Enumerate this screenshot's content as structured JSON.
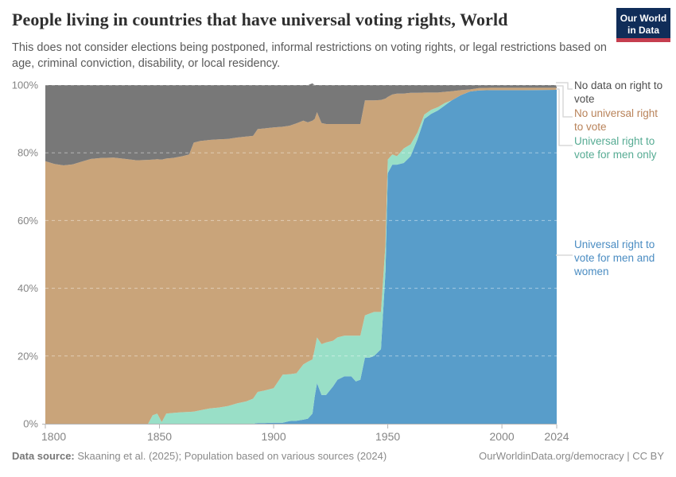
{
  "header": {
    "title": "People living in countries that have universal voting rights, World",
    "subtitle": "This does not consider elections being postponed, informal restrictions on voting rights, or legal restrictions based on age, criminal conviction, disability, or local residency.",
    "logo": {
      "line1": "Our World",
      "line2": "in Data",
      "bg_color": "#102d59",
      "bar_color": "#c53e4f"
    }
  },
  "legend": {
    "items": [
      {
        "label": "No data on right to vote",
        "color": "#4e4e4e",
        "series": "No data on right to vote"
      },
      {
        "label": "No universal right to vote",
        "color": "#b9835a",
        "series": "No universal right to vote"
      },
      {
        "label": "Universal right to vote for men only",
        "color": "#56ab93",
        "series": "Universal right to vote for men only"
      },
      {
        "label": "Universal right to vote for men and women",
        "color": "#4a8cc2",
        "series": "Universal right to vote for men and women"
      }
    ]
  },
  "chart_data": {
    "type": "area",
    "stacked": true,
    "unit": "%",
    "title": "People living in countries that have universal voting rights, World",
    "xlabel": "",
    "ylabel": "",
    "ylim": [
      0,
      100
    ],
    "grid": "dashed horizontal",
    "legend_position": "right",
    "ytick_labels": [
      "0%",
      "20%",
      "40%",
      "60%",
      "80%",
      "100%"
    ],
    "ytick_values": [
      0,
      20,
      40,
      60,
      80,
      100
    ],
    "xtick_values": [
      1800,
      1850,
      1900,
      1950,
      2000,
      2024
    ],
    "x": [
      1800,
      1804,
      1808,
      1812,
      1816,
      1820,
      1825,
      1830,
      1835,
      1840,
      1845,
      1847,
      1849,
      1851,
      1853,
      1856,
      1860,
      1863,
      1865,
      1868,
      1872,
      1876,
      1880,
      1884,
      1888,
      1891,
      1893,
      1896,
      1900,
      1904,
      1907,
      1910,
      1913,
      1915,
      1917,
      1918,
      1919,
      1921,
      1923,
      1926,
      1928,
      1931,
      1934,
      1936,
      1938,
      1940,
      1942,
      1944,
      1947,
      1949,
      1950,
      1952,
      1954,
      1957,
      1960,
      1963,
      1966,
      1969,
      1972,
      1975,
      1978,
      1982,
      1986,
      1990,
      1995,
      2000,
      2010,
      2024
    ],
    "series": [
      {
        "name": "Universal right to vote for men and women",
        "color": "#589dca",
        "label_color": "#4a8cc2",
        "values": [
          0,
          0,
          0,
          0,
          0,
          0,
          0,
          0,
          0,
          0,
          0,
          0,
          0,
          0,
          0,
          0,
          0,
          0,
          0,
          0,
          0,
          0,
          0,
          0,
          0,
          0,
          0.2,
          0.2,
          0.3,
          0.3,
          0.8,
          0.9,
          1.2,
          1.5,
          3,
          8,
          12,
          8.5,
          8.5,
          11,
          13,
          14,
          14,
          12.5,
          13,
          19.5,
          19.5,
          20,
          22,
          45,
          74,
          76.5,
          76.5,
          77,
          79,
          84,
          90,
          91.5,
          92.5,
          94,
          95.5,
          97,
          98.1,
          98.4,
          98.5,
          98.5,
          98.5,
          98.6
        ]
      },
      {
        "name": "Universal right to vote for men only",
        "color": "#99dfc7",
        "label_color": "#56ab93",
        "values": [
          0,
          0,
          0,
          0,
          0,
          0,
          0,
          0,
          0,
          0,
          0,
          2.5,
          3,
          0.5,
          3,
          3.2,
          3.4,
          3.5,
          3.6,
          4,
          4.5,
          4.8,
          5.2,
          6,
          6.6,
          7.4,
          9.2,
          9.6,
          10.2,
          14.2,
          13.8,
          14,
          16.3,
          16.8,
          16,
          14,
          13.5,
          15,
          15.5,
          13.5,
          12.5,
          12,
          12,
          13.5,
          13,
          12.5,
          13,
          13,
          11,
          8,
          4,
          3,
          2.5,
          4.3,
          3.5,
          2,
          1.3,
          1.2,
          1,
          0.7,
          0,
          0,
          0,
          0,
          0,
          0,
          0,
          0
        ]
      },
      {
        "name": "No universal right to vote",
        "color": "#c9a47a",
        "label_color": "#b9835a",
        "values": [
          77.5,
          76.7,
          76.3,
          76.6,
          77.4,
          78.2,
          78.5,
          78.6,
          78.2,
          77.8,
          77.9,
          75.5,
          75.1,
          77.5,
          75.3,
          75.3,
          75.6,
          76,
          79.4,
          79.5,
          79.3,
          79.2,
          78.9,
          78.5,
          78.2,
          77.6,
          77.6,
          77.4,
          77,
          73.2,
          73.4,
          73.8,
          72,
          70.7,
          70.5,
          68,
          66.5,
          65.3,
          64.5,
          64,
          63,
          62.5,
          62.5,
          62.5,
          62.5,
          63.5,
          63,
          62.5,
          62.6,
          43,
          18.5,
          17.7,
          18.5,
          16.2,
          15.2,
          11.7,
          6.5,
          5.1,
          4.3,
          3.3,
          2.7,
          1.5,
          0.6,
          0.7,
          0.7,
          0.7,
          0.7,
          0.6
        ]
      },
      {
        "name": "No data on right to vote",
        "color": "#787878",
        "label_color": "#4e4e4e",
        "values": [
          22.5,
          23.3,
          23.7,
          23.4,
          22.6,
          21.8,
          21.5,
          21.4,
          21.8,
          22.2,
          22.1,
          22,
          21.9,
          22,
          21.7,
          21.5,
          21,
          20.5,
          17,
          16.5,
          16.2,
          16,
          15.9,
          15.5,
          15.2,
          15,
          13,
          12.8,
          12.5,
          12.3,
          12,
          11.3,
          10.5,
          11,
          11,
          10,
          8,
          11.2,
          11.5,
          11.5,
          11.5,
          11.5,
          11.5,
          11.5,
          11.5,
          4.5,
          4.5,
          4.5,
          4.4,
          4,
          3.5,
          2.8,
          2.5,
          2.5,
          2.3,
          2.3,
          2.2,
          2.2,
          2.2,
          2,
          1.8,
          1.5,
          1.3,
          0.9,
          0.8,
          0.8,
          0.8,
          0.8
        ]
      }
    ]
  },
  "footer": {
    "source_label": "Data source:",
    "source_text": " Skaaning et al. (2025); Population based on various sources (2024)",
    "right_text": "OurWorldinData.org/democracy | CC BY"
  }
}
